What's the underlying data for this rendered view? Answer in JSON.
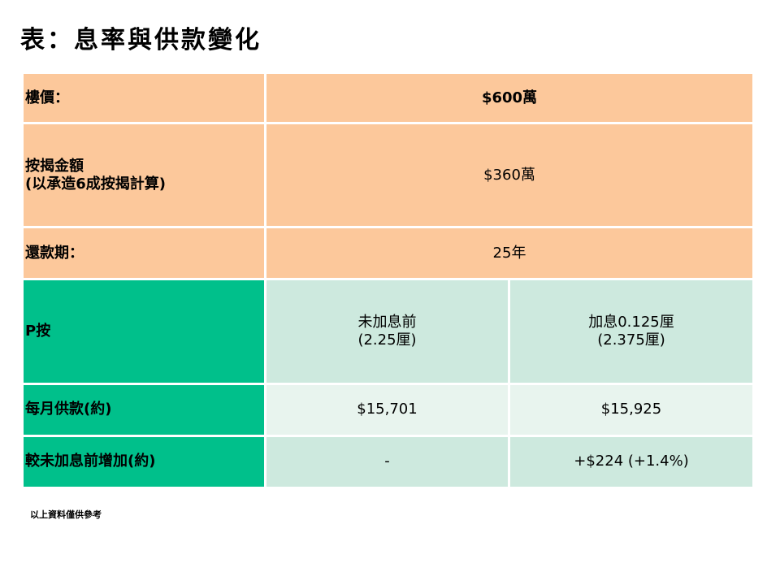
{
  "title": "表：息率與供款變化",
  "table": {
    "price": {
      "label": "樓價：",
      "value": "$600萬"
    },
    "loan": {
      "label": "按揭金額\n(以承造6成按揭計算)",
      "value": "$360萬"
    },
    "term": {
      "label": "還款期：",
      "value": "25年"
    },
    "plan": {
      "label": "P按",
      "before": "未加息前\n(2.25厘)",
      "after": "加息0.125厘\n(2.375厘)"
    },
    "monthly": {
      "label": "每月供款(約)",
      "before": "$15,701",
      "after": "$15,925"
    },
    "increase": {
      "label": "較未加息前增加(約)",
      "before": "-",
      "after": "+$224 (+1.4%)"
    }
  },
  "note": "以上資料僅供參考",
  "colors": {
    "orange": "#fcc89b",
    "green": "#00c08b",
    "mint": "#cde9de",
    "mint_light": "#e8f4ee"
  }
}
